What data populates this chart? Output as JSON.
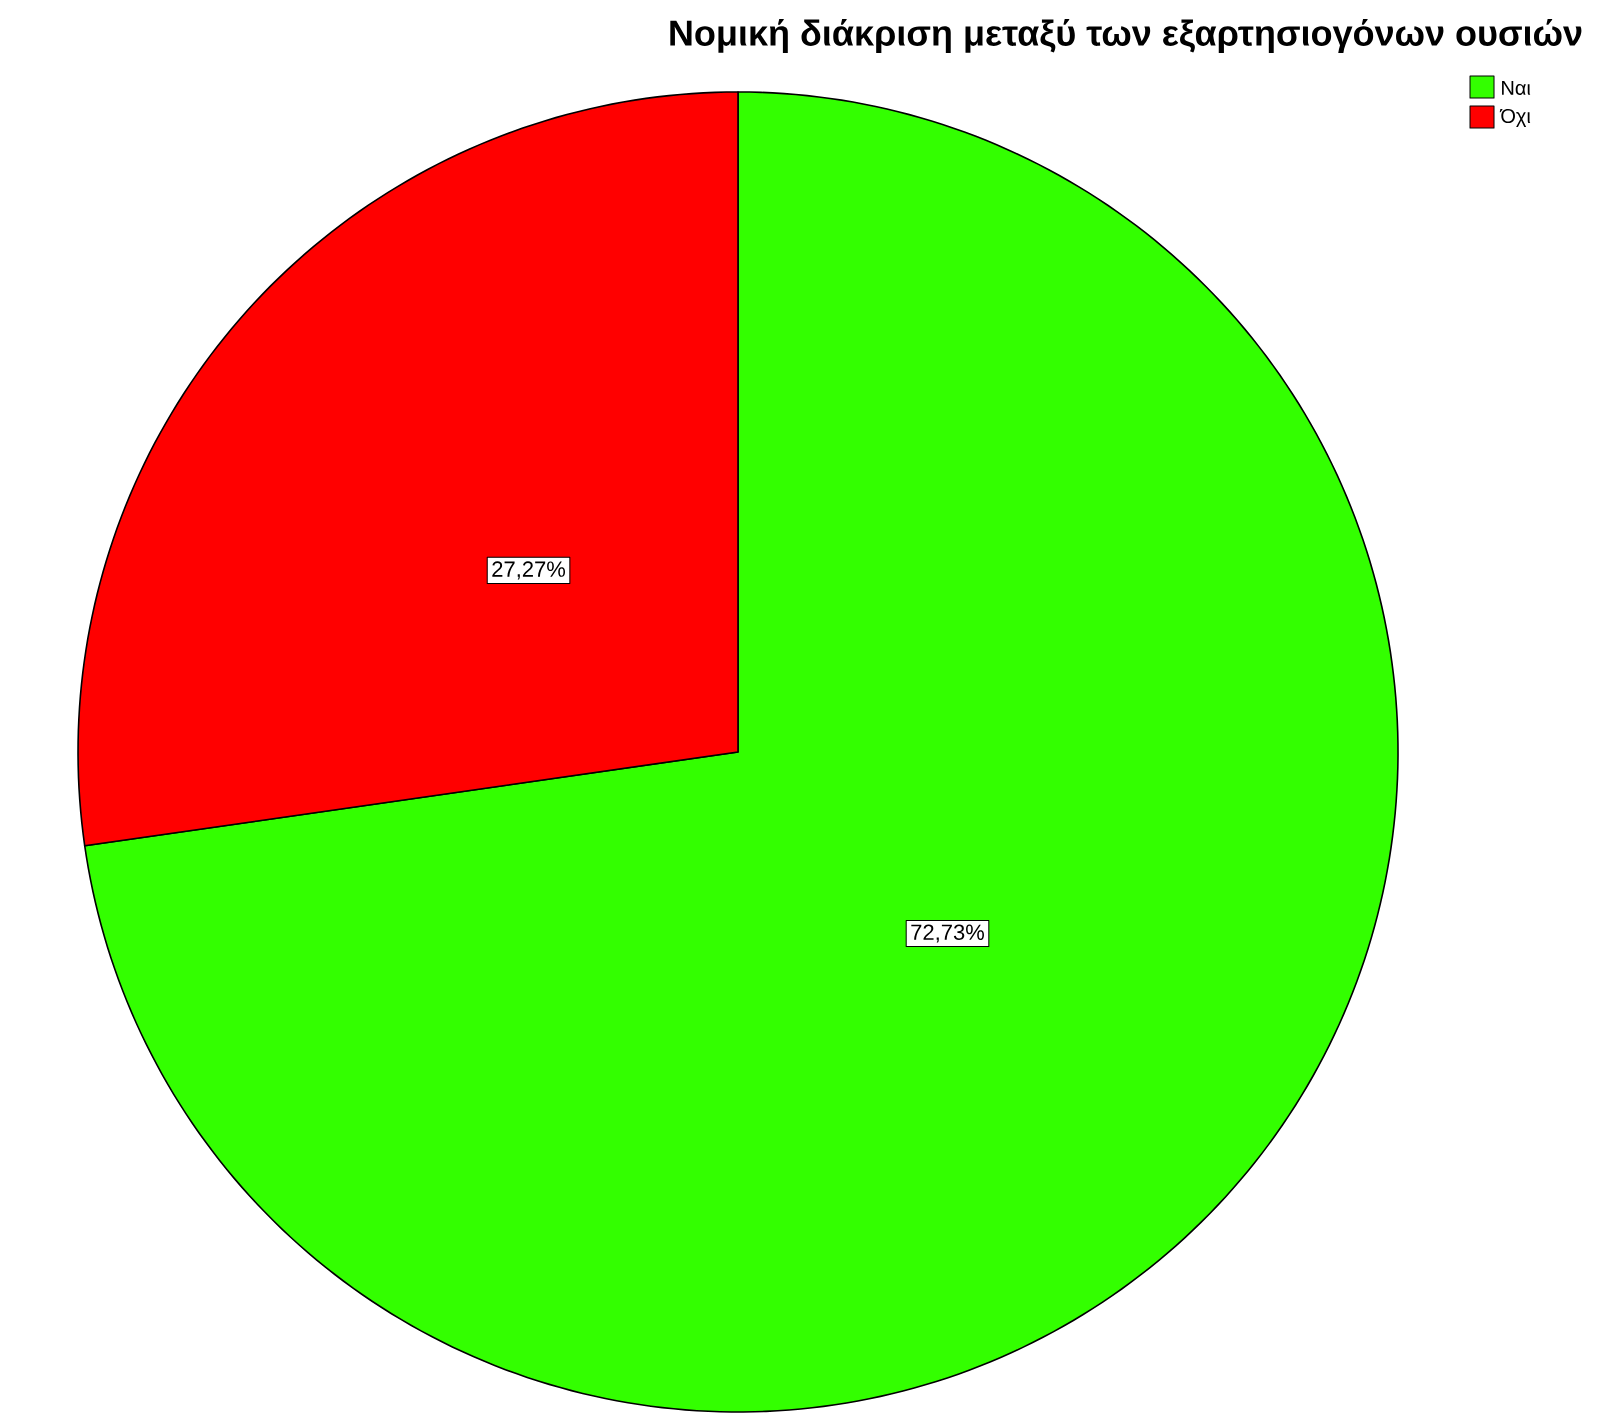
{
  "chart_data": {
    "type": "pie",
    "title": "Νομική διάκριση μεταξύ των εξαρτησιογόνων ουσιών",
    "categories": [
      "Ναι",
      "Όχι"
    ],
    "values": [
      72.73,
      27.27
    ],
    "colors": [
      "#33ff00",
      "#ff0000"
    ],
    "value_labels": [
      "72,73%",
      "27,27%"
    ],
    "legend": "top right"
  }
}
